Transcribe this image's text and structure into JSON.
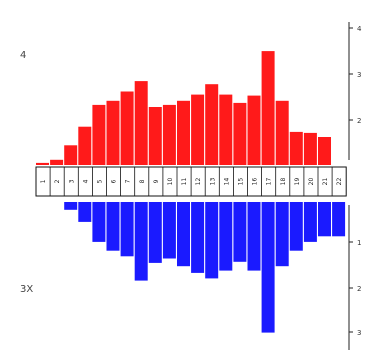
{
  "chart_data": {
    "type": "bar",
    "layout": "mirrored",
    "title": "",
    "left_labels": [
      "4",
      "3X"
    ],
    "right_ticks_top": [
      "4",
      "3",
      "2"
    ],
    "right_ticks_bottom": [
      "1",
      "2",
      "3"
    ],
    "categories": [
      "1",
      "2",
      "3",
      "4",
      "5",
      "6",
      "7",
      "8",
      "9",
      "10",
      "11",
      "12",
      "13",
      "14",
      "15",
      "16",
      "17",
      "18",
      "19",
      "20",
      "21",
      "22"
    ],
    "ylim": [
      0,
      112
    ],
    "series": [
      {
        "color": "#ff1a1a",
        "direction": "up",
        "values": [
          2,
          5,
          19,
          37,
          58,
          62,
          71,
          81,
          56,
          58,
          62,
          68,
          78,
          68,
          60,
          67,
          110,
          62,
          32,
          31,
          27,
          0
        ]
      },
      {
        "color": "#1a1aff",
        "direction": "down",
        "values": [
          0,
          0,
          7,
          18,
          36,
          44,
          49,
          71,
          55,
          51,
          58,
          64,
          69,
          62,
          54,
          62,
          118,
          58,
          44,
          36,
          31,
          31
        ]
      }
    ],
    "grid": false
  }
}
